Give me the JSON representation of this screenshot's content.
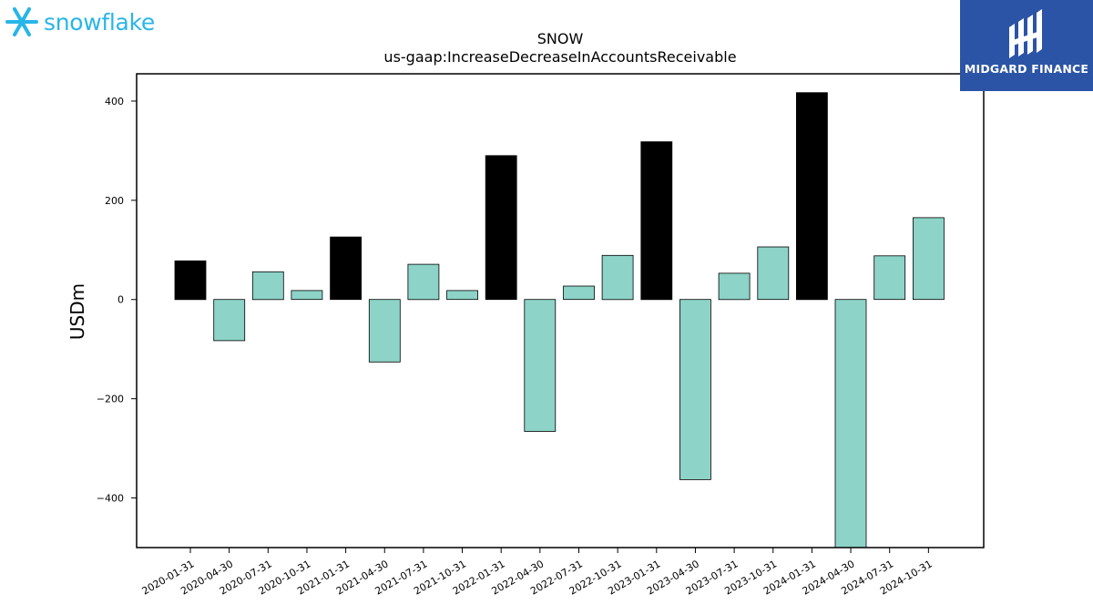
{
  "logos": {
    "left_name": "snowflake",
    "left_color": "#29b5e8",
    "right_name": "MIDGARD FINANCE",
    "right_bg": "#2c54a6"
  },
  "chart_data": {
    "type": "bar",
    "title": "SNOW",
    "subtitle": "us-gaap:IncreaseDecreaseInAccountsReceivable",
    "xlabel": "",
    "ylabel": "USDm",
    "ylim": [
      -500,
      455
    ],
    "yticks": [
      400,
      200,
      0,
      -200,
      -400
    ],
    "ytick_labels": [
      "400",
      "200",
      "0",
      "−200",
      "−400"
    ],
    "grid": false,
    "categories": [
      "2020-01-31",
      "2020-04-30",
      "2020-07-31",
      "2020-10-31",
      "2021-01-31",
      "2021-04-30",
      "2021-07-31",
      "2021-10-31",
      "2022-01-31",
      "2022-04-30",
      "2022-07-31",
      "2022-10-31",
      "2023-01-31",
      "2023-04-30",
      "2023-07-31",
      "2023-10-31",
      "2024-01-31",
      "2024-04-30",
      "2024-07-31",
      "2024-10-31"
    ],
    "values": [
      78,
      -83,
      56,
      18,
      126,
      -126,
      71,
      18,
      290,
      -266,
      27,
      89,
      318,
      -363,
      53,
      106,
      417,
      -500,
      88,
      165
    ],
    "bar_colors": [
      "#000000",
      "#8dd3c7",
      "#8dd3c7",
      "#8dd3c7",
      "#000000",
      "#8dd3c7",
      "#8dd3c7",
      "#8dd3c7",
      "#000000",
      "#8dd3c7",
      "#8dd3c7",
      "#8dd3c7",
      "#000000",
      "#8dd3c7",
      "#8dd3c7",
      "#8dd3c7",
      "#000000",
      "#8dd3c7",
      "#8dd3c7",
      "#8dd3c7"
    ]
  }
}
